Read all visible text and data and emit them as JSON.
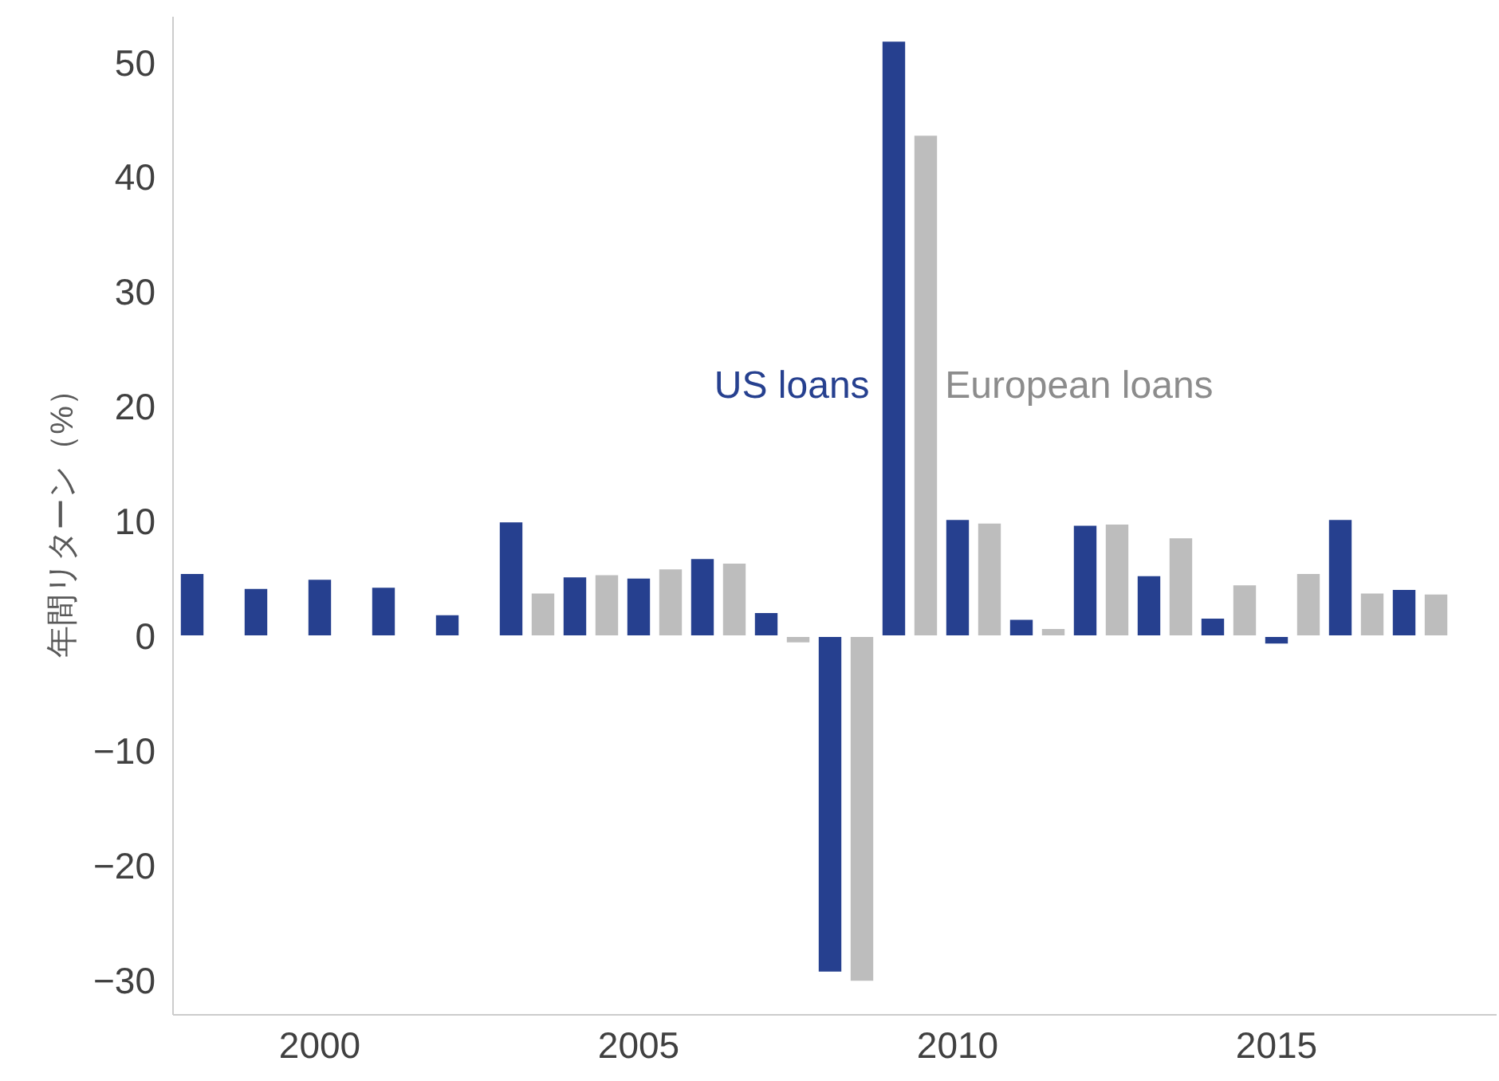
{
  "chart_data": {
    "type": "bar",
    "ylabel": "年間リターン（%）",
    "x": [
      1998,
      1999,
      2000,
      2001,
      2002,
      2003,
      2004,
      2005,
      2006,
      2007,
      2008,
      2009,
      2010,
      2011,
      2012,
      2013,
      2014,
      2015,
      2016,
      2017
    ],
    "series": [
      {
        "name": "US loans",
        "color": "#26408f",
        "values": [
          5.5,
          4.2,
          5.0,
          4.3,
          1.9,
          10.0,
          5.2,
          5.1,
          6.8,
          2.1,
          -29.3,
          51.9,
          10.2,
          1.5,
          9.7,
          5.3,
          1.6,
          -0.7,
          10.2,
          4.1
        ]
      },
      {
        "name": "European loans",
        "color": "#bdbdbd",
        "values": [
          null,
          null,
          null,
          null,
          null,
          3.8,
          5.4,
          5.9,
          6.4,
          -0.6,
          -30.1,
          43.7,
          9.9,
          0.7,
          9.8,
          8.6,
          4.5,
          5.5,
          3.8,
          3.7
        ]
      }
    ],
    "xlim": [
      1997.7,
      2018.45
    ],
    "xticks": [
      2000,
      2005,
      2010,
      2015
    ],
    "ylim": [
      -33,
      54
    ],
    "yticks": [
      -30,
      -20,
      -10,
      0,
      10,
      20,
      30,
      40,
      50
    ],
    "grid": false
  }
}
